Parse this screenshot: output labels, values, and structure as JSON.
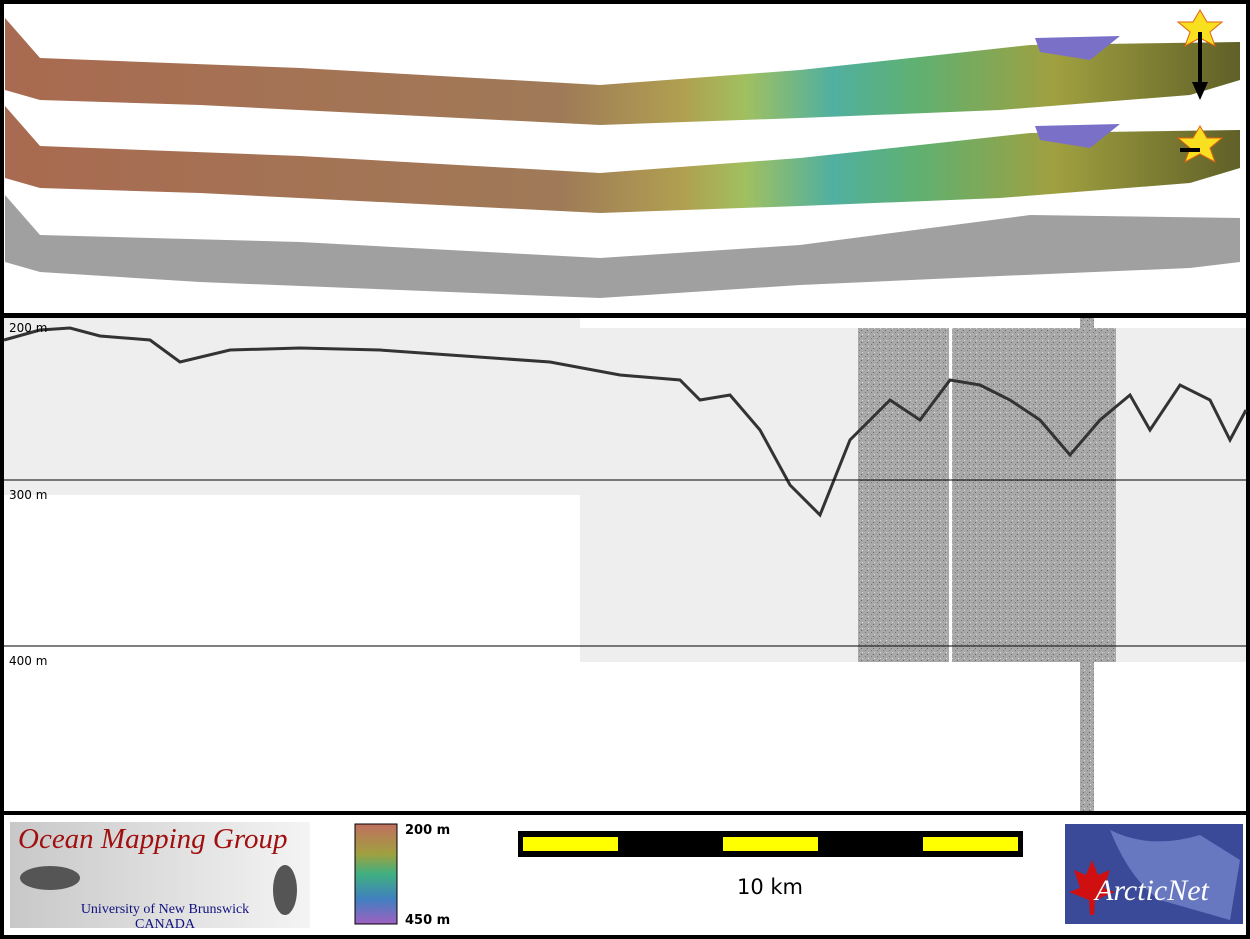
{
  "profile": {
    "depth_labels": [
      "200 m",
      "300 m",
      "400 m"
    ]
  },
  "footer": {
    "logo": {
      "title": "Ocean Mapping Group",
      "line1": "University of New Brunswick",
      "line2": "CANADA"
    },
    "colorbar": {
      "top": "200 m",
      "bottom": "450 m"
    },
    "scalebar": {
      "label": "10 km"
    },
    "partner": {
      "name": "ArcticNet"
    }
  }
}
